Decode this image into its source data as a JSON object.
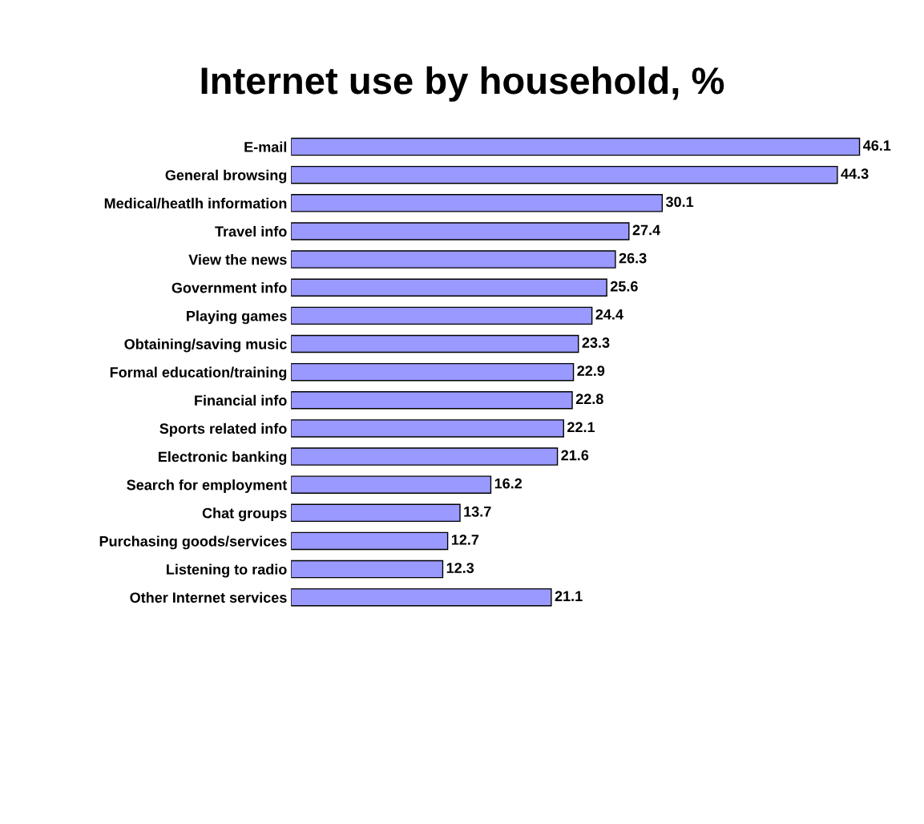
{
  "chart_data": {
    "type": "bar",
    "orientation": "horizontal",
    "title": "Internet use by household, %",
    "categories": [
      "E-mail",
      "General browsing",
      "Medical/heatlh information",
      "Travel info",
      "View the news",
      "Government info",
      "Playing games",
      "Obtaining/saving music",
      "Formal education/training",
      "Financial info",
      "Sports related info",
      "Electronic banking",
      "Search for employment",
      "Chat groups",
      "Purchasing goods/services",
      "Listening to radio",
      "Other Internet services"
    ],
    "values": [
      46.1,
      44.3,
      30.1,
      27.4,
      26.3,
      25.6,
      24.4,
      23.3,
      22.9,
      22.8,
      22.1,
      21.6,
      16.2,
      13.7,
      12.7,
      12.3,
      21.1
    ],
    "color": "#9999ff",
    "data_labels": true,
    "grid": false,
    "legend": false,
    "tick_labels": "y"
  }
}
